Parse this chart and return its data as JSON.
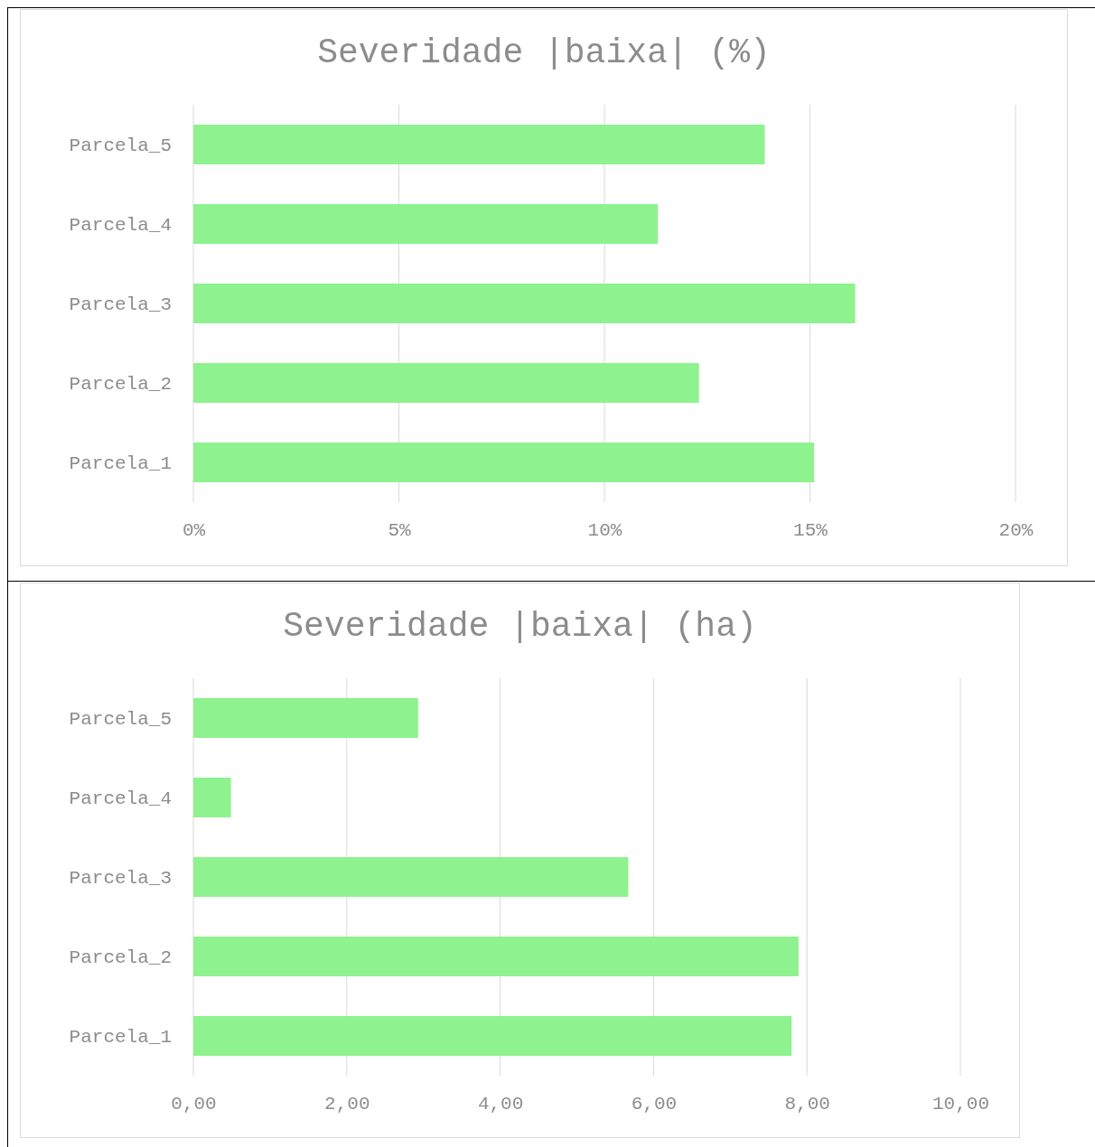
{
  "chart_data": [
    {
      "type": "bar",
      "orientation": "horizontal",
      "title": "Severidade |baixa| (%)",
      "categories": [
        "Parcela_5",
        "Parcela_4",
        "Parcela_3",
        "Parcela_2",
        "Parcela_1"
      ],
      "values": [
        13.9,
        11.3,
        16.1,
        12.3,
        15.1
      ],
      "color": "#8ef28e",
      "xlim": [
        0,
        20
      ],
      "xticks": [
        {
          "value": 0,
          "label": "0%"
        },
        {
          "value": 5,
          "label": "5%"
        },
        {
          "value": 10,
          "label": "10%"
        },
        {
          "value": 15,
          "label": "15%"
        },
        {
          "value": 20,
          "label": "20%"
        }
      ],
      "grid": "x"
    },
    {
      "type": "bar",
      "orientation": "horizontal",
      "title": "Severidade |baixa| (ha)",
      "categories": [
        "Parcela_5",
        "Parcela_4",
        "Parcela_3",
        "Parcela_2",
        "Parcela_1"
      ],
      "values": [
        2.93,
        0.49,
        5.67,
        7.89,
        7.8
      ],
      "color": "#8ef28e",
      "xlim": [
        0,
        10
      ],
      "xticks": [
        {
          "value": 0,
          "label": "0,00"
        },
        {
          "value": 2,
          "label": "2,00"
        },
        {
          "value": 4,
          "label": "4,00"
        },
        {
          "value": 6,
          "label": "6,00"
        },
        {
          "value": 8,
          "label": "8,00"
        },
        {
          "value": 10,
          "label": "10,00"
        }
      ],
      "grid": "x"
    }
  ]
}
